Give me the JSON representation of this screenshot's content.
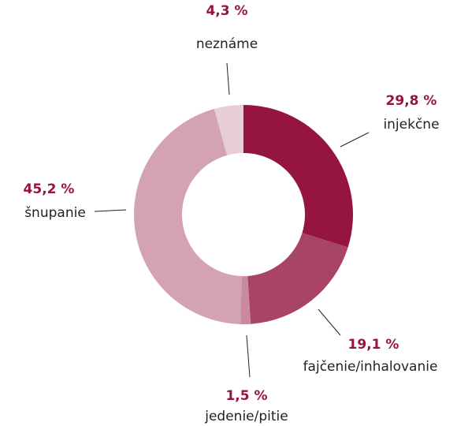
{
  "chart_data": {
    "type": "donut",
    "categories": [
      "injekčne",
      "fajčenie/inhalovanie",
      "jedenie/pitie",
      "šnupanie",
      "neznáme"
    ],
    "values": [
      29.8,
      19.1,
      1.5,
      45.2,
      4.3
    ],
    "value_labels": [
      "29,8 %",
      "19,1 %",
      "1,5 %",
      "45,2 %",
      "4,3 %"
    ],
    "colors": [
      "#96153f",
      "#a84465",
      "#c98aa0",
      "#d4a3b3",
      "#e8ccd6"
    ]
  }
}
